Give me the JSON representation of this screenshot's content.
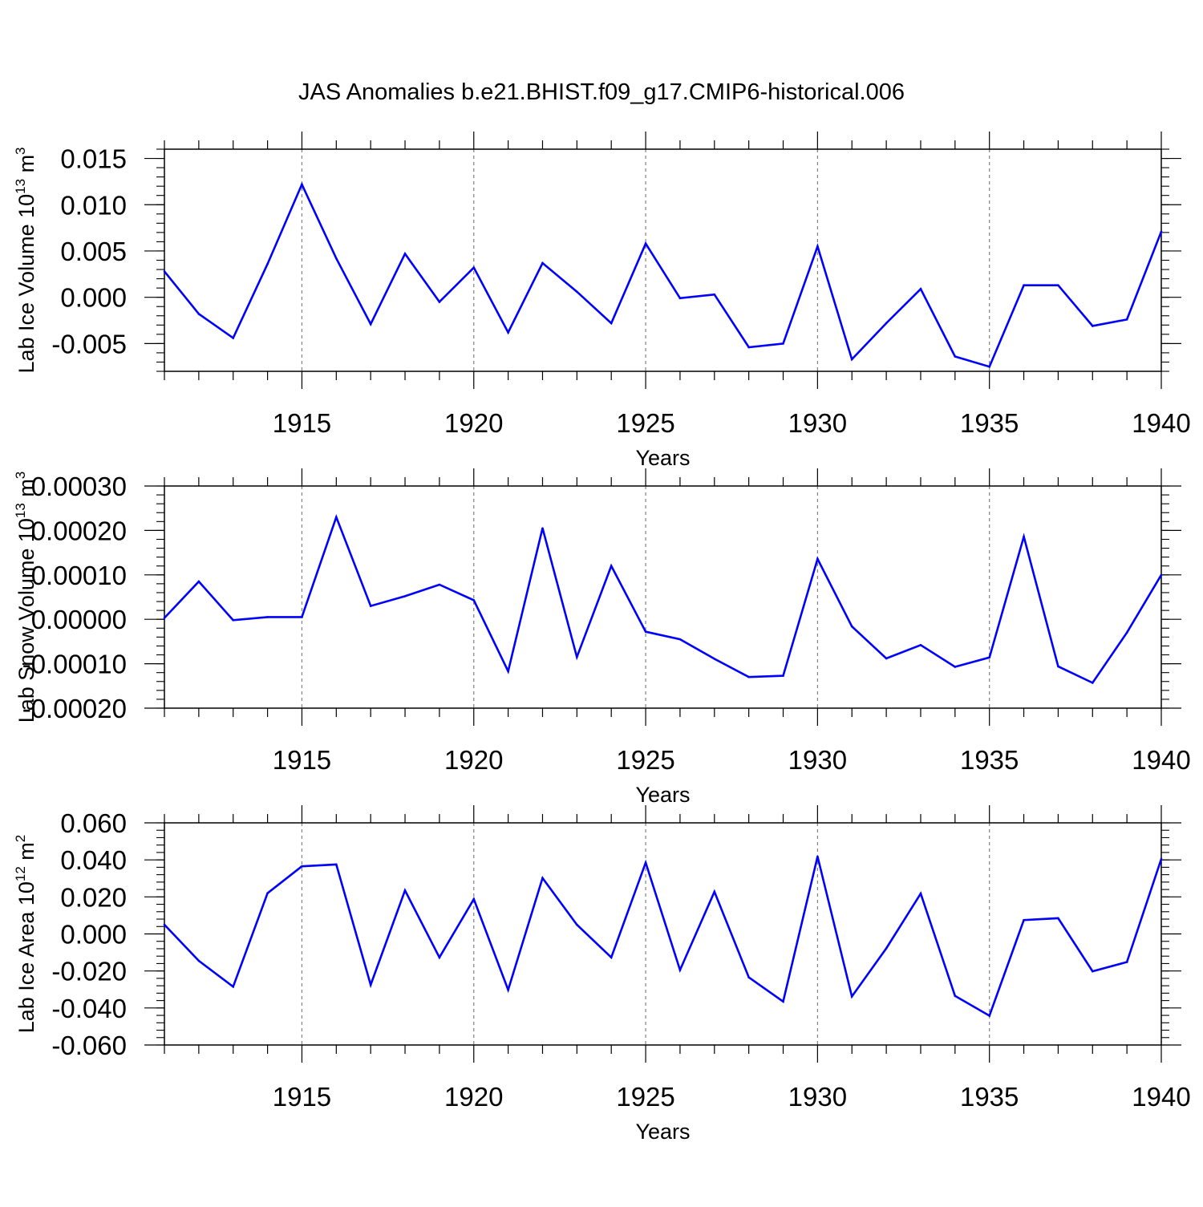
{
  "title": "JAS Anomalies b.e21.BHIST.f09_g17.CMIP6-historical.006",
  "colors": {
    "line": "#0000ff",
    "axis": "#000000",
    "grid": "#808080",
    "background": "#ffffff"
  },
  "chart_data": [
    {
      "type": "line",
      "name": "lab-ice-volume",
      "title": "JAS Anomalies b.e21.BHIST.f09_g17.CMIP6-historical.006",
      "xlabel": "Years",
      "ylabel": {
        "main": "Lab Ice Volume 10",
        "exp": "13",
        "unit": " m",
        "unit_exp": "3"
      },
      "xlim": [
        1911,
        1940
      ],
      "ylim": [
        -0.008,
        0.016
      ],
      "yticks": [
        -0.005,
        0.0,
        0.005,
        0.01,
        0.015
      ],
      "ytick_labels": [
        "-0.005",
        "0.000",
        "0.005",
        "0.010",
        "0.015"
      ],
      "xticks": [
        1915,
        1920,
        1925,
        1930,
        1935,
        1940
      ],
      "xtick_labels": [
        "1915",
        "1920",
        "1925",
        "1930",
        "1935",
        "1940"
      ],
      "grid": "dashed vertical at major x ticks",
      "x": [
        1911,
        1912,
        1913,
        1914,
        1915,
        1916,
        1917,
        1918,
        1919,
        1920,
        1921,
        1922,
        1923,
        1924,
        1925,
        1926,
        1927,
        1928,
        1929,
        1930,
        1931,
        1932,
        1933,
        1934,
        1935,
        1936,
        1937,
        1938,
        1939,
        1940
      ],
      "values": [
        0.0028,
        -0.0018,
        -0.0044,
        0.0036,
        0.0122,
        0.0042,
        -0.0029,
        0.0047,
        -0.0005,
        0.0032,
        -0.0038,
        0.0037,
        0.0006,
        -0.0028,
        0.0058,
        -0.0001,
        0.0003,
        -0.0054,
        -0.005,
        0.0055,
        -0.0067,
        -0.0028,
        0.0009,
        -0.0064,
        -0.0075,
        0.0013,
        0.0013,
        -0.0031,
        -0.0024,
        0.0071
      ]
    },
    {
      "type": "line",
      "name": "lab-snow-volume",
      "xlabel": "Years",
      "ylabel": {
        "main": "Lab Snow Volume 10",
        "exp": "13",
        "unit": " m",
        "unit_exp": "3"
      },
      "xlim": [
        1911,
        1940
      ],
      "ylim": [
        -0.0002,
        0.0003
      ],
      "yticks": [
        -0.0002,
        -0.0001,
        0.0,
        0.0001,
        0.0002,
        0.0003
      ],
      "ytick_labels": [
        "-0.00020",
        "-0.00010",
        "0.00000",
        "0.00010",
        "0.00020",
        "0.00030"
      ],
      "xticks": [
        1915,
        1920,
        1925,
        1930,
        1935,
        1940
      ],
      "xtick_labels": [
        "1915",
        "1920",
        "1925",
        "1930",
        "1935",
        "1940"
      ],
      "grid": "dashed vertical at major x ticks",
      "x": [
        1911,
        1912,
        1913,
        1914,
        1915,
        1916,
        1917,
        1918,
        1919,
        1920,
        1921,
        1922,
        1923,
        1924,
        1925,
        1926,
        1927,
        1928,
        1929,
        1930,
        1931,
        1932,
        1933,
        1934,
        1935,
        1936,
        1937,
        1938,
        1939,
        1940
      ],
      "values": [
        3e-06,
        8.5e-05,
        -2e-06,
        5e-06,
        5e-06,
        0.00023,
        3e-05,
        5.2e-05,
        7.8e-05,
        4.3e-05,
        -0.000117,
        0.000205,
        -8.5e-05,
        0.00012,
        -2.8e-05,
        -4.5e-05,
        -8.9e-05,
        -0.00013,
        -0.000127,
        0.000136,
        -1.6e-05,
        -8.8e-05,
        -5.8e-05,
        -0.000107,
        -8.6e-05,
        0.000186,
        -0.000106,
        -0.000143,
        -3e-05,
        0.0001
      ]
    },
    {
      "type": "line",
      "name": "lab-ice-area",
      "xlabel": "Years",
      "ylabel": {
        "main": "Lab Ice Area 10",
        "exp": "12",
        "unit": " m",
        "unit_exp": "2"
      },
      "xlim": [
        1911,
        1940
      ],
      "ylim": [
        -0.06,
        0.06
      ],
      "yticks": [
        -0.06,
        -0.04,
        -0.02,
        0.0,
        0.02,
        0.04,
        0.06
      ],
      "ytick_labels": [
        "-0.060",
        "-0.040",
        "-0.020",
        "0.000",
        "0.020",
        "0.040",
        "0.060"
      ],
      "xticks": [
        1915,
        1920,
        1925,
        1930,
        1935,
        1940
      ],
      "xtick_labels": [
        "1915",
        "1920",
        "1925",
        "1930",
        "1935",
        "1940"
      ],
      "grid": "dashed vertical at major x ticks",
      "x": [
        1911,
        1912,
        1913,
        1914,
        1915,
        1916,
        1917,
        1918,
        1919,
        1920,
        1921,
        1922,
        1923,
        1924,
        1925,
        1926,
        1927,
        1928,
        1929,
        1930,
        1931,
        1932,
        1933,
        1934,
        1935,
        1936,
        1937,
        1938,
        1939,
        1940
      ],
      "values": [
        0.005,
        -0.0145,
        -0.0285,
        0.022,
        0.0365,
        0.0375,
        -0.0275,
        0.0235,
        -0.0127,
        0.0188,
        -0.0302,
        0.0302,
        0.005,
        -0.0127,
        0.0385,
        -0.0195,
        0.0228,
        -0.0235,
        -0.0365,
        0.0418,
        -0.0338,
        -0.0078,
        0.0218,
        -0.0335,
        -0.0442,
        0.0075,
        0.0085,
        -0.0202,
        -0.0152,
        0.0405
      ]
    }
  ]
}
